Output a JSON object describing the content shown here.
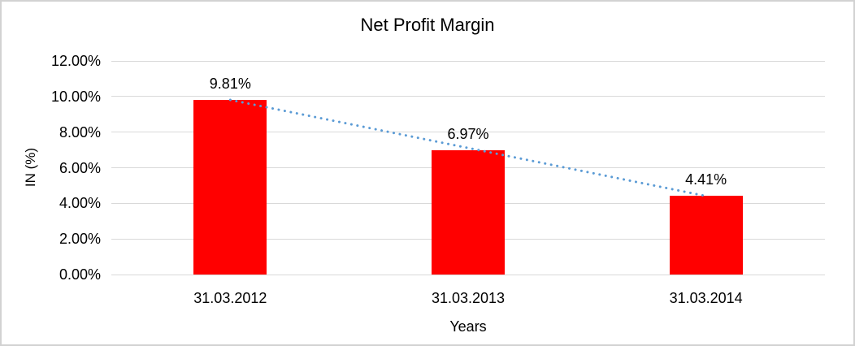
{
  "chart_data": {
    "type": "bar",
    "title": "Net Profit Margin",
    "xlabel": "Years",
    "ylabel": "IN (%)",
    "unit": "%",
    "categories": [
      "31.03.2012",
      "31.03.2013",
      "31.03.2014"
    ],
    "values": [
      9.81,
      6.97,
      4.41
    ],
    "data_labels": [
      "9.81%",
      "6.97%",
      "4.41%"
    ],
    "ylim": [
      0,
      12
    ],
    "yticks": [
      {
        "value": 0,
        "label": "0.00%"
      },
      {
        "value": 2,
        "label": "2.00%"
      },
      {
        "value": 4,
        "label": "4.00%"
      },
      {
        "value": 6,
        "label": "6.00%"
      },
      {
        "value": 8,
        "label": "8.00%"
      },
      {
        "value": 10,
        "label": "10.00%"
      },
      {
        "value": 12,
        "label": "12.00%"
      }
    ],
    "grid": true,
    "legend": "none",
    "bar_color": "#ff0000",
    "gridline_color": "#d9d9d9",
    "trendline": {
      "type": "linear",
      "line_style": "dotted",
      "color": "#5b9bd5",
      "start_value": 9.81,
      "end_value": 4.41
    }
  }
}
